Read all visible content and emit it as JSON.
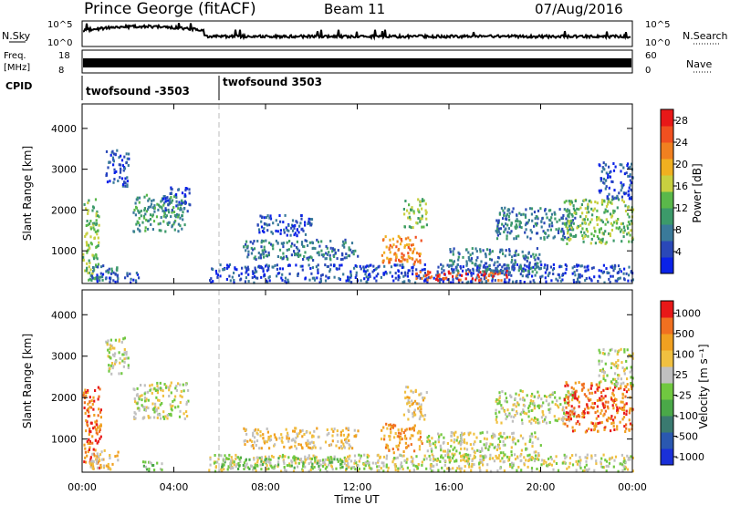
{
  "header": {
    "station": "Prince George (fitACF)",
    "beam": "Beam 11",
    "date": "07/Aug/2016"
  },
  "nsky_panel": {
    "left_label": "N.Sky",
    "left_ticks": [
      "10^5",
      "10^0"
    ],
    "right_ticks": [
      "10^5",
      "10^0"
    ],
    "right_label": "N.Search"
  },
  "freq_panel": {
    "label_line1": "Freq.",
    "label_line2": "[MHz]",
    "left_ticks": [
      "18",
      "8"
    ],
    "right_ticks": [
      "60",
      "0"
    ],
    "right_label": "Nave"
  },
  "cpid": {
    "label": "CPID",
    "segments": [
      {
        "name": "twofsound -3503",
        "start_h": 0,
        "end_h": 6
      },
      {
        "name": "twofsound 3503",
        "start_h": 6,
        "end_h": 24
      }
    ]
  },
  "chart_data": [
    {
      "type": "heatmap",
      "name": "power",
      "ylabel": "Slant Range [km]",
      "yticks": [
        1000,
        2000,
        3000,
        4000
      ],
      "ylim": [
        200,
        4600
      ],
      "xlim_hours": [
        0,
        24
      ],
      "colorbar": {
        "label": "Power [dB]",
        "ticks": [
          "4",
          "8",
          "12",
          "16",
          "20",
          "24",
          "28"
        ],
        "colors": [
          "#0a22e8",
          "#2a48b8",
          "#3a7a9a",
          "#3c9a6a",
          "#5ab84a",
          "#c8d040",
          "#f0b020",
          "#f08020",
          "#f05020",
          "#e81818"
        ]
      },
      "regions": [
        {
          "t0": 0.0,
          "t1": 0.7,
          "r0": 300,
          "r1": 2300,
          "ci": 4
        },
        {
          "t0": 0.3,
          "t1": 1.5,
          "r0": 300,
          "r1": 700,
          "ci": 2
        },
        {
          "t0": 0.6,
          "t1": 2.5,
          "r0": 250,
          "r1": 500,
          "ci": 1
        },
        {
          "t0": 1.0,
          "t1": 2.0,
          "r0": 2600,
          "r1": 3500,
          "ci": 1
        },
        {
          "t0": 2.2,
          "t1": 4.5,
          "r0": 1500,
          "r1": 2400,
          "ci": 3
        },
        {
          "t0": 3.5,
          "t1": 4.7,
          "r0": 2000,
          "r1": 2600,
          "ci": 1
        },
        {
          "t0": 5.5,
          "t1": 24.0,
          "r0": 250,
          "r1": 700,
          "ci": 1
        },
        {
          "t0": 7.0,
          "t1": 12.0,
          "r0": 800,
          "r1": 1300,
          "ci": 2
        },
        {
          "t0": 7.5,
          "t1": 10.0,
          "r0": 1400,
          "r1": 1900,
          "ci": 1
        },
        {
          "t0": 13.0,
          "t1": 14.8,
          "r0": 700,
          "r1": 1400,
          "ci": 7
        },
        {
          "t0": 14.0,
          "t1": 15.0,
          "r0": 1600,
          "r1": 2300,
          "ci": 4
        },
        {
          "t0": 14.5,
          "t1": 18.5,
          "r0": 300,
          "r1": 550,
          "ci": 8
        },
        {
          "t0": 16.0,
          "t1": 20.0,
          "r0": 500,
          "r1": 1100,
          "ci": 2
        },
        {
          "t0": 18.0,
          "t1": 21.5,
          "r0": 1300,
          "r1": 2100,
          "ci": 2
        },
        {
          "t0": 21.0,
          "t1": 24.0,
          "r0": 1200,
          "r1": 2300,
          "ci": 4
        },
        {
          "t0": 22.5,
          "t1": 24.0,
          "r0": 2300,
          "r1": 3200,
          "ci": 1
        }
      ]
    },
    {
      "type": "heatmap",
      "name": "velocity",
      "ylabel": "Slant Range [km]",
      "yticks": [
        1000,
        2000,
        3000,
        4000
      ],
      "ylim": [
        200,
        4600
      ],
      "xlim_hours": [
        0,
        24
      ],
      "xticks": [
        "00:00",
        "04:00",
        "08:00",
        "12:00",
        "16:00",
        "20:00",
        "00:00"
      ],
      "xlabel": "Time UT",
      "colorbar": {
        "label": "Velocity [m s⁻¹]",
        "ticks": [
          "1000",
          "500",
          "100",
          "25",
          "-25",
          "-100",
          "-500",
          "-1000"
        ],
        "colors": [
          "#1a30d8",
          "#2a58b0",
          "#3a7a70",
          "#4aa848",
          "#70c840",
          "#c0c0c0",
          "#f0c040",
          "#f0a020",
          "#f07020",
          "#e81818"
        ]
      },
      "regions": [
        {
          "t0": 0.0,
          "t1": 0.8,
          "r0": 300,
          "r1": 2300,
          "ci": 8
        },
        {
          "t0": 0.3,
          "t1": 1.6,
          "r0": 300,
          "r1": 800,
          "ci": 6
        },
        {
          "t0": 2.5,
          "t1": 3.5,
          "r0": 250,
          "r1": 500,
          "ci": 4
        },
        {
          "t0": 2.2,
          "t1": 4.6,
          "r0": 1500,
          "r1": 2400,
          "ci": 5
        },
        {
          "t0": 1.0,
          "t1": 2.0,
          "r0": 2600,
          "r1": 3500,
          "ci": 5
        },
        {
          "t0": 5.5,
          "t1": 24.0,
          "r0": 250,
          "r1": 650,
          "ci": 5
        },
        {
          "t0": 6.0,
          "t1": 12.0,
          "r0": 300,
          "r1": 600,
          "ci": 4
        },
        {
          "t0": 7.0,
          "t1": 12.0,
          "r0": 800,
          "r1": 1300,
          "ci": 6
        },
        {
          "t0": 13.0,
          "t1": 14.8,
          "r0": 700,
          "r1": 1400,
          "ci": 7
        },
        {
          "t0": 14.0,
          "t1": 15.0,
          "r0": 1500,
          "r1": 2300,
          "ci": 6
        },
        {
          "t0": 15.0,
          "t1": 20.0,
          "r0": 500,
          "r1": 1200,
          "ci": 5
        },
        {
          "t0": 18.0,
          "t1": 21.5,
          "r0": 1400,
          "r1": 2200,
          "ci": 5
        },
        {
          "t0": 21.0,
          "t1": 24.0,
          "r0": 1200,
          "r1": 2400,
          "ci": 8
        },
        {
          "t0": 22.5,
          "t1": 24.0,
          "r0": 2300,
          "r1": 3200,
          "ci": 5
        }
      ]
    }
  ]
}
